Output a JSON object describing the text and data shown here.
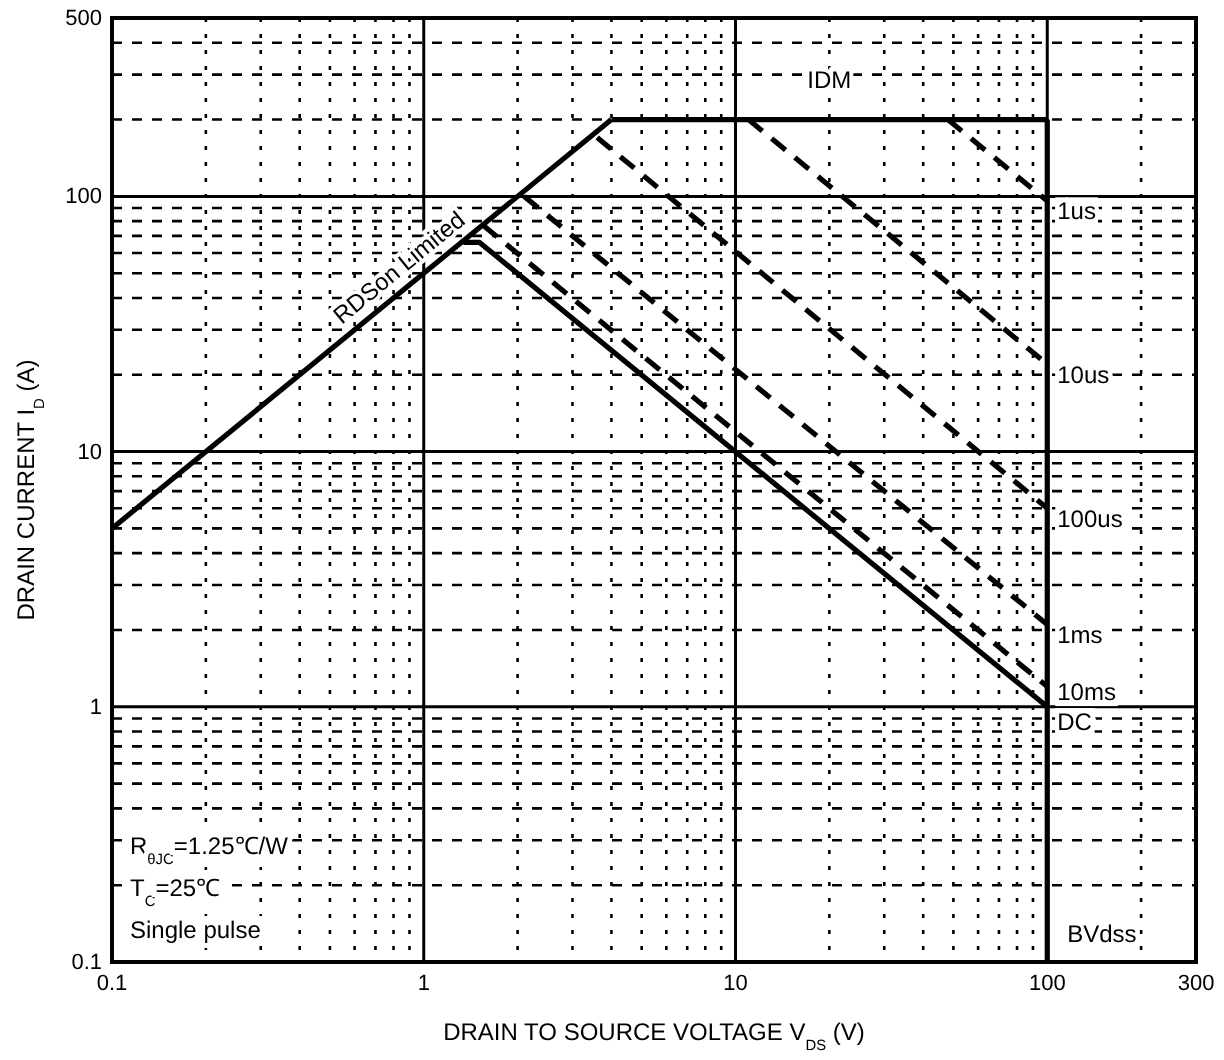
{
  "chart_data": {
    "type": "line",
    "xlabel": "DRAIN TO SOURCE VOLTAGE    V$_{DS}$    (V)",
    "ylabel": "DRAIN CURRENT    I$_{D}$    (A)",
    "log": "xy",
    "xlim": [
      0.1,
      300
    ],
    "xticks": [
      0.1,
      1,
      10,
      100,
      300
    ],
    "ylim": [
      0.1,
      500
    ],
    "yticks": [
      0.1,
      1,
      10,
      100,
      500
    ],
    "grid": true,
    "legend": false,
    "series": [
      {
        "name": "RDSon Limited",
        "color": "#000000",
        "line_style": "solid",
        "x": [
          0.1,
          4
        ],
        "values": [
          5,
          200
        ]
      },
      {
        "name": "IDM",
        "color": "#000000",
        "line_style": "solid",
        "x": [
          4,
          100
        ],
        "values": [
          200,
          200
        ]
      },
      {
        "name": "BVdss",
        "color": "#000000",
        "line_style": "solid",
        "x": [
          100,
          100
        ],
        "values": [
          200,
          0.1
        ]
      },
      {
        "name": "1us",
        "color": "#000000",
        "line_style": "dashed",
        "x": [
          48,
          100
        ],
        "values": [
          200,
          96
        ]
      },
      {
        "name": "10us",
        "color": "#000000",
        "line_style": "dashed",
        "x": [
          11,
          100
        ],
        "values": [
          200,
          22
        ]
      },
      {
        "name": "100us",
        "color": "#000000",
        "line_style": "dashed",
        "x": [
          3.6,
          100
        ],
        "values": [
          170,
          6
        ]
      },
      {
        "name": "1ms",
        "color": "#000000",
        "line_style": "dashed",
        "x": [
          2.1,
          100
        ],
        "values": [
          100,
          2.1
        ]
      },
      {
        "name": "10ms",
        "color": "#000000",
        "line_style": "dashed",
        "x": [
          1.55,
          100
        ],
        "values": [
          77,
          1.2
        ]
      },
      {
        "name": "DC",
        "color": "#000000",
        "line_style": "solid",
        "x": [
          1.34,
          1.51,
          100
        ],
        "values": [
          66,
          66,
          1
        ]
      }
    ],
    "annotations": [
      "R$_{θJC}$=1.25℃/W",
      "T$_{C}$=25℃",
      "Single pulse"
    ]
  }
}
